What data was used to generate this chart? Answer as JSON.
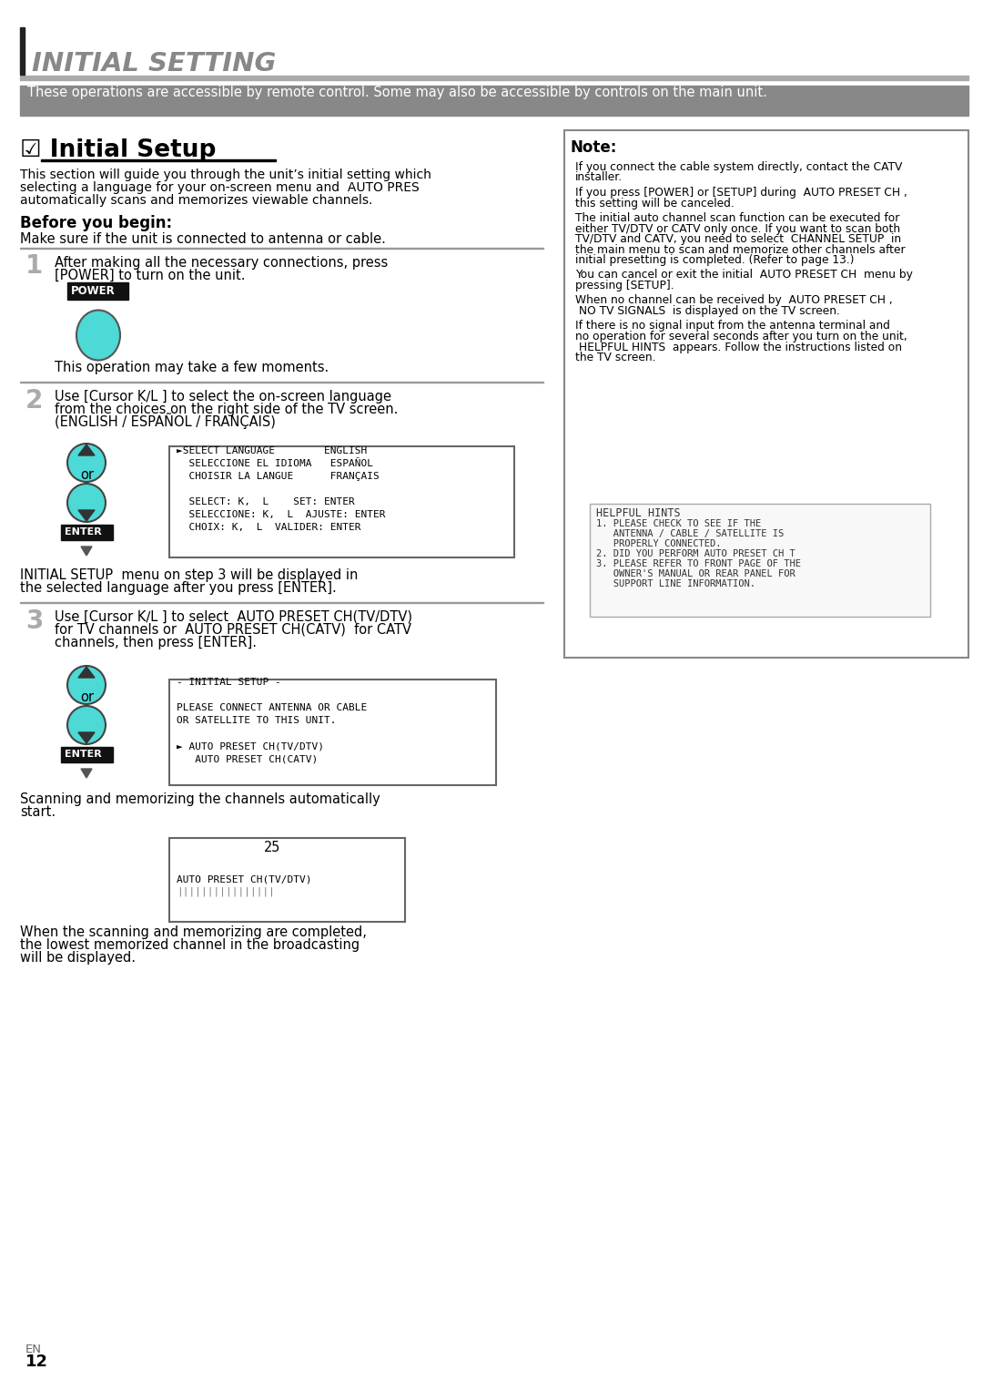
{
  "page_bg": "#ffffff",
  "header_text": "INITIAL SETTING",
  "header_text_color": "#888888",
  "gray_banner_text": "These operations are accessible by remote control. Some may also be accessible by controls on the main unit.",
  "section_title": "☑ Initial Setup",
  "section_intro_1": "This section will guide you through the unit’s initial setting which",
  "section_intro_2": "selecting a language for your on-screen menu and  AUTO PRES",
  "section_intro_3": "automatically scans and memorizes viewable channels.",
  "before_begin": "Before you begin:",
  "before_begin_sub": "Make sure if the unit is connected to antenna or cable.",
  "step1_text_1": "After making all the necessary connections, press",
  "step1_text_2": "[POWER] to turn on the unit.",
  "step1_sub": "This operation may take a few moments.",
  "step2_text_1": "Use [Cursor K∕L ] to select the on-screen language",
  "step2_text_2": "from the choices on the right side of the TV screen.",
  "step2_text_3": "(ENGLISH / ESPAÑOL / FRANÇAIS)",
  "step2_after_1": "INITIAL SETUP  menu on step 3 will be displayed in",
  "step2_after_2": "the selected language after you press [ENTER].",
  "step3_text_1": "Use [Cursor K∕L ] to select  AUTO PRESET CH(TV/DTV)",
  "step3_text_2": "for TV channels or  AUTO PRESET CH(CATV)  for CATV",
  "step3_text_3": "channels, then press [ENTER].",
  "step3_after_1": "Scanning and memorizing the channels automatically",
  "step3_after_2": "start.",
  "final_1": "When the scanning and memorizing are completed,",
  "final_2": "the lowest memorized channel in the broadcasting",
  "final_3": "will be displayed.",
  "note_title": "Note:",
  "note_lines": [
    "If you connect the cable system directly, contact the CATV\ninstaller.",
    "If you press [POWER] or [SETUP] during  AUTO PRESET CH ,\nthis setting will be canceled.",
    "The initial auto channel scan function can be executed for\neither TV/DTV or CATV only once. If you want to scan both\nTV/DTV and CATV, you need to select  CHANNEL SETUP  in\nthe main menu to scan and memorize other channels after\ninitial presetting is completed. (Refer to page 13.)",
    "You can cancel or exit the initial  AUTO PRESET CH  menu by\npressing [SETUP].",
    "When no channel can be received by  AUTO PRESET CH ,\n NO TV SIGNALS  is displayed on the TV screen.",
    "If there is no signal input from the antenna terminal and\nno operation for several seconds after you turn on the unit,\n HELPFUL HINTS  appears. Follow the instructions listed on\nthe TV screen."
  ],
  "helpful_hints_lines": [
    "HELPFUL HINTS",
    "1. PLEASE CHECK TO SEE IF THE",
    "   ANTENNA / CABLE / SATELLITE IS",
    "   PROPERLY CONNECTED.",
    "2. DID YOU PERFORM AUTO PRESET CH T",
    "3. PLEASE REFER TO FRONT PAGE OF THE",
    "   OWNER'S MANUAL OR REAR PANEL FOR",
    "   SUPPORT LINE INFORMATION."
  ],
  "lang_menu_lines": [
    "►SELECT LANGUAGE        ENGLISH",
    "  SELECCIONE EL IDIOMA   ESPAÑOL",
    "  CHOISIR LA LANGUE      FRANÇAIS",
    "",
    "  SELECT: K,  L    SET: ENTER",
    "  SELECCIONE: K,  L  AJUSTE: ENTER",
    "  CHOIX: K,  L  VALIDER: ENTER"
  ],
  "setup_menu_lines": [
    "- INITIAL SETUP -",
    "",
    "PLEASE CONNECT ANTENNA OR CABLE",
    "OR SATELLITE TO THIS UNIT.",
    "",
    "► AUTO PRESET CH(TV/DTV)",
    "   AUTO PRESET CH(CATV)"
  ],
  "scan_num": "25",
  "scan_label": "AUTO PRESET CH(TV/DTV)",
  "scan_bar": "||||||||||||||||",
  "cyan_color": "#4dd9d5",
  "page_number": "12",
  "page_sub": "EN"
}
